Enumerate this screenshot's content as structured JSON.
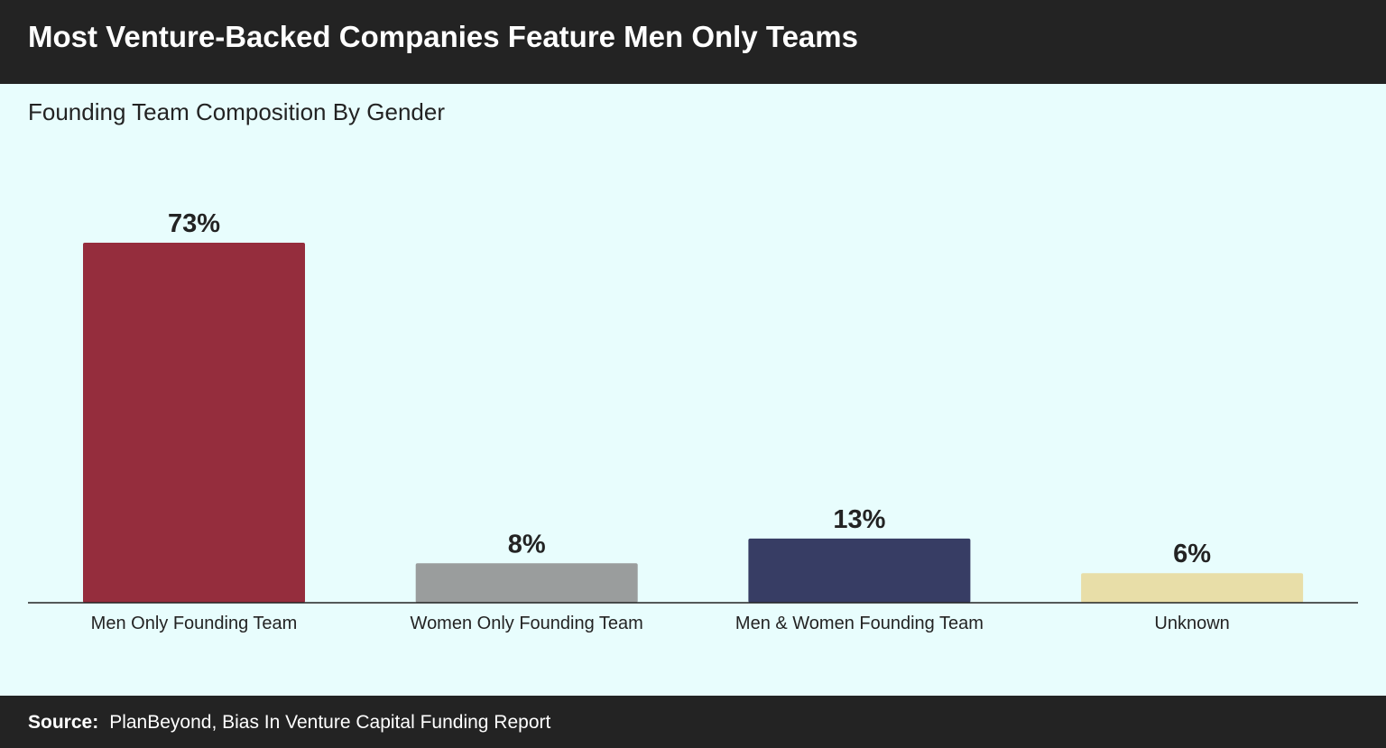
{
  "header": {
    "title": "Most Venture-Backed Companies Feature Men Only Teams"
  },
  "subtitle": "Founding Team Composition By Gender",
  "footer": {
    "source_label": "Source:",
    "source_text": "PlanBeyond, Bias In Venture Capital Funding Report"
  },
  "chart_data": {
    "type": "bar",
    "title": "Most Venture-Backed Companies Feature Men Only Teams",
    "subtitle": "Founding Team Composition By Gender",
    "categories": [
      "Men Only Founding Team",
      "Women Only Founding Team",
      "Men & Women Founding Team",
      "Unknown"
    ],
    "values": [
      73,
      8,
      13,
      6
    ],
    "data_labels": [
      "73%",
      "8%",
      "13%",
      "6%"
    ],
    "colors": [
      "#952d3d",
      "#9a9d9d",
      "#373d64",
      "#e8dea8"
    ],
    "xlabel": "",
    "ylabel": "",
    "ylim": [
      0,
      80
    ],
    "grid": false,
    "legend": "none"
  }
}
